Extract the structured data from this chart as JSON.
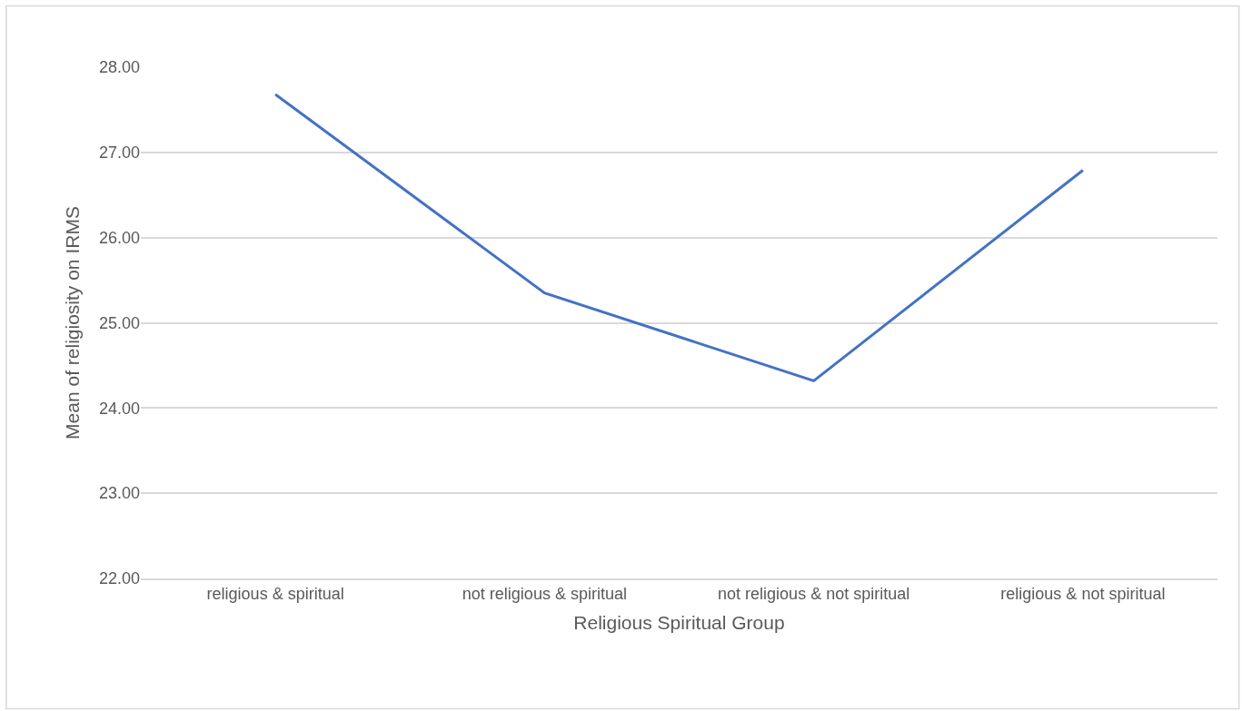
{
  "chart_data": {
    "type": "line",
    "xlabel": "Religious Spiritual Group",
    "ylabel": "Mean of religiosity on IRMS",
    "categories": [
      "religious & spiritual",
      "not religious & spiritual",
      "not religious & not spiritual",
      "religious & not spiritual"
    ],
    "series": [
      {
        "color": "#4472c4",
        "values": [
          27.68,
          25.35,
          24.32,
          26.79
        ]
      }
    ],
    "ylim": [
      22,
      28
    ],
    "yticks": [
      {
        "value": 22,
        "label": "22.00"
      },
      {
        "value": 23,
        "label": "23.00"
      },
      {
        "value": 24,
        "label": "24.00"
      },
      {
        "value": 25,
        "label": "25.00"
      },
      {
        "value": 26,
        "label": "26.00"
      },
      {
        "value": 27,
        "label": "27.00"
      },
      {
        "value": 28,
        "label": "28.00"
      }
    ],
    "grid": "y",
    "marker": "none",
    "line_style": "solid"
  }
}
